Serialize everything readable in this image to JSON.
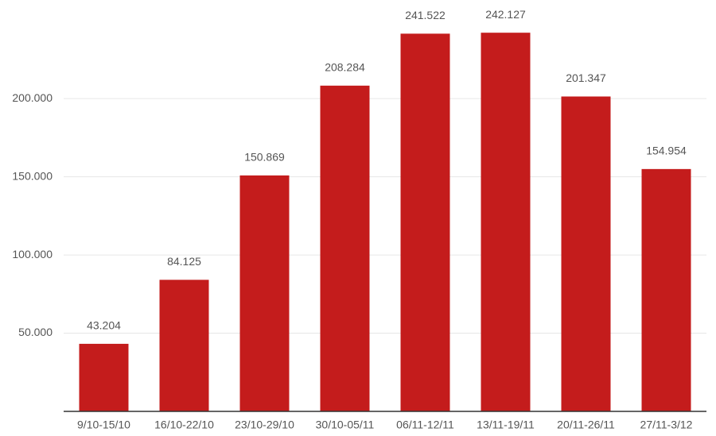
{
  "chart_data": {
    "type": "bar",
    "categories": [
      "9/10-15/10",
      "16/10-22/10",
      "23/10-29/10",
      "30/10-05/11",
      "06/11-12/11",
      "13/11-19/11",
      "20/11-26/11",
      "27/11-3/12"
    ],
    "values": [
      43204,
      84125,
      150869,
      208284,
      241522,
      242127,
      201347,
      154954
    ],
    "value_labels": [
      "43.204",
      "84.125",
      "150.869",
      "208.284",
      "241.522",
      "242.127",
      "201.347",
      "154.954"
    ],
    "color": "#c41c1c",
    "ylim": [
      0,
      260000
    ],
    "yticks": [
      {
        "value": 50000,
        "label": "50.000"
      },
      {
        "value": 100000,
        "label": "100.000"
      },
      {
        "value": 150000,
        "label": "150.000"
      },
      {
        "value": 200000,
        "label": "200.000"
      }
    ],
    "grid": true
  }
}
